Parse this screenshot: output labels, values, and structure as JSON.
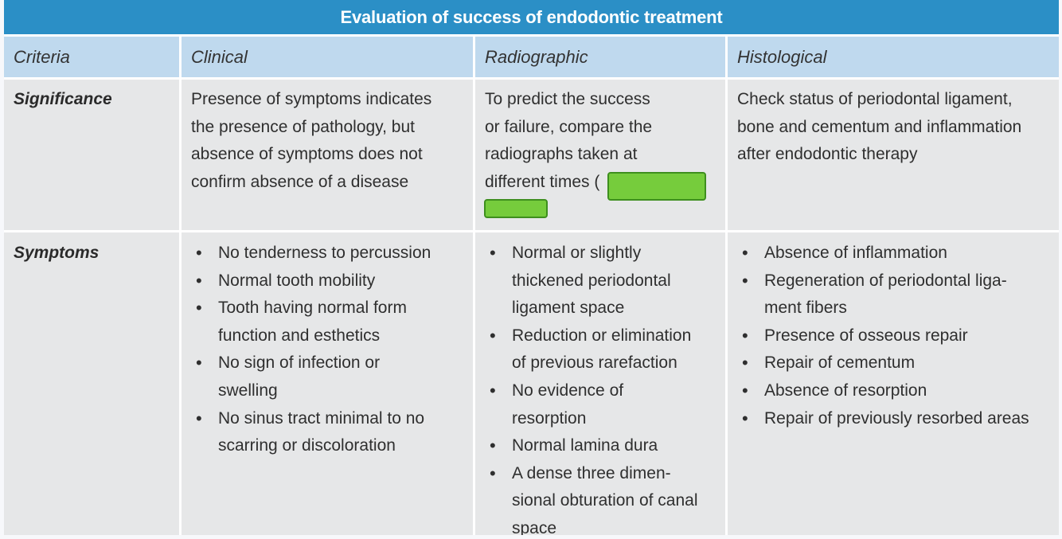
{
  "table": {
    "title": "Evaluation of success of endodontic treatment",
    "headers": [
      "Criteria",
      "Clinical",
      "Radiographic",
      "Histological"
    ],
    "rows": [
      {
        "criteria": "Significance",
        "clinical": [
          "Presence of symptoms indicates",
          "the presence of pathology, but",
          "absence of symptoms does not",
          "confirm absence of a disease"
        ],
        "radiographic": [
          "To predict the success",
          "or failure, compare the",
          "radiographs taken at",
          "different times ("
        ],
        "histological": [
          "Check status of periodontal ligament,",
          "bone and cementum and inflammation",
          "after endodontic therapy"
        ]
      },
      {
        "criteria": "Symptoms",
        "clinical": [
          [
            "No tenderness to percussion"
          ],
          [
            "Normal tooth mobility"
          ],
          [
            "Tooth having normal form",
            "function and esthetics"
          ],
          [
            "No sign of infection or",
            "swelling"
          ],
          [
            "No sinus tract minimal to no",
            "scarring or discoloration"
          ]
        ],
        "radiographic": [
          [
            "Normal or slightly",
            "thickened periodontal",
            "ligament space"
          ],
          [
            "Reduction or elimination",
            "of previous rarefaction"
          ],
          [
            "No evidence of",
            "resorption"
          ],
          [
            "Normal lamina dura"
          ],
          [
            "A dense three dimen-",
            "sional obturation of canal",
            "space"
          ]
        ],
        "histological": [
          [
            "Absence of inflammation"
          ],
          [
            "Regeneration of periodontal liga-",
            "ment fibers"
          ],
          [
            "Presence of osseous repair"
          ],
          [
            "Repair of cementum"
          ],
          [
            "Absence of resorption"
          ],
          [
            "Repair of previously resorbed areas"
          ]
        ]
      }
    ]
  },
  "colors": {
    "title_bar": "#2b8fc6",
    "header_row": "#bfd9ee",
    "body_cell": "#e6e7e8",
    "redaction": "#76cc3c"
  }
}
